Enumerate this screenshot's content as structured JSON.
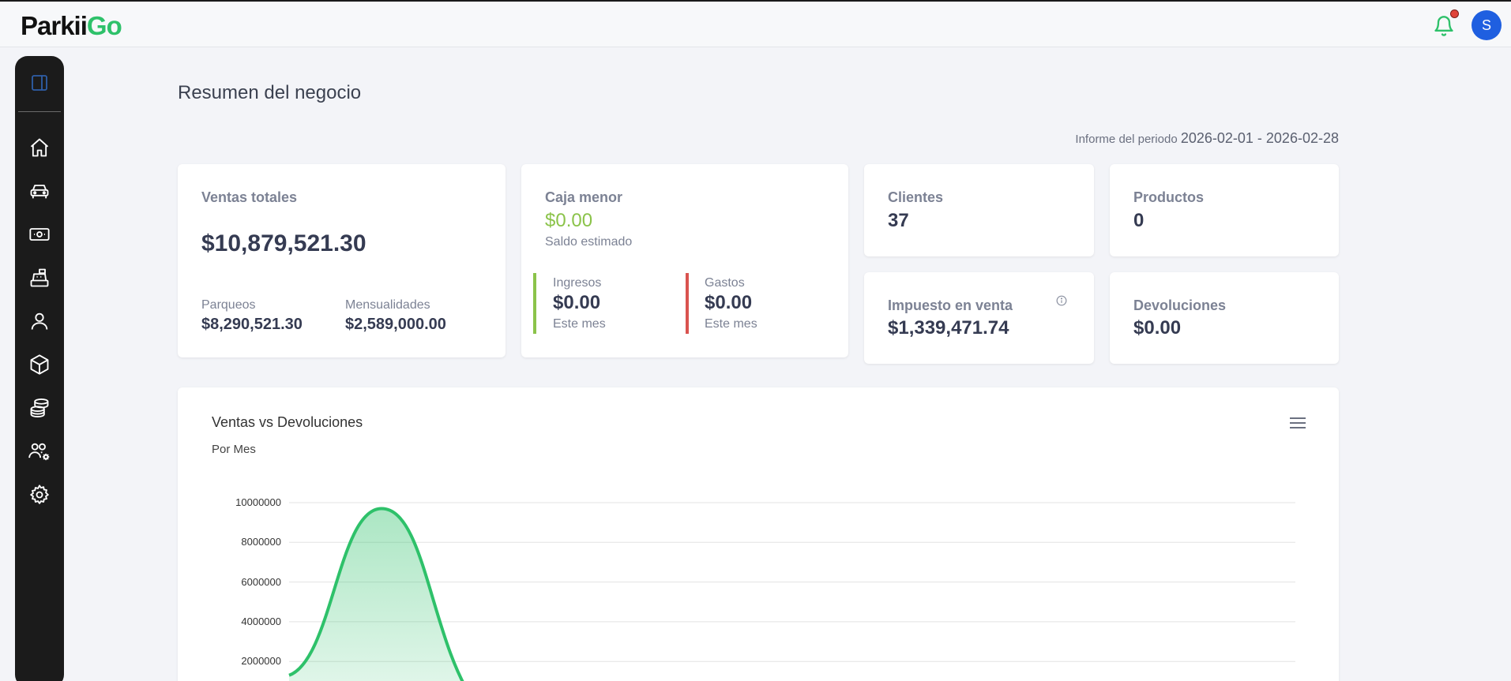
{
  "app": {
    "logo_prefix": "Parkii",
    "logo_suffix": "Go",
    "avatar_initial": "S",
    "notification_icon": "bell-icon"
  },
  "sidebar": {
    "toggle_icon": "sidebar-toggle-icon",
    "items": [
      {
        "name": "home",
        "icon": "home-icon"
      },
      {
        "name": "vehicles",
        "icon": "car-icon"
      },
      {
        "name": "payments",
        "icon": "cash-icon"
      },
      {
        "name": "cash-register",
        "icon": "register-icon"
      },
      {
        "name": "clients",
        "icon": "user-icon"
      },
      {
        "name": "products",
        "icon": "box-icon"
      },
      {
        "name": "finances",
        "icon": "coins-icon"
      },
      {
        "name": "users",
        "icon": "users-gear-icon"
      },
      {
        "name": "settings",
        "icon": "gear-icon"
      }
    ]
  },
  "page": {
    "title": "Resumen del negocio",
    "period_label": "Informe del periodo",
    "period_dates": "2026-02-01 - 2026-02-28"
  },
  "cards": {
    "ventas_totales": {
      "label": "Ventas totales",
      "value": "$10,879,521.30",
      "parqueos_label": "Parqueos",
      "parqueos_value": "$8,290,521.30",
      "mensualidades_label": "Mensualidades",
      "mensualidades_value": "$2,589,000.00"
    },
    "caja_menor": {
      "label": "Caja menor",
      "value": "$0.00",
      "caption": "Saldo estimado",
      "ingresos_label": "Ingresos",
      "ingresos_value": "$0.00",
      "ingresos_caption": "Este mes",
      "gastos_label": "Gastos",
      "gastos_value": "$0.00",
      "gastos_caption": "Este mes",
      "value_color": "#8bc34a",
      "ingresos_color": "#8bc34a",
      "gastos_color": "#d9534f"
    },
    "clientes": {
      "label": "Clientes",
      "value": "37"
    },
    "productos": {
      "label": "Productos",
      "value": "0"
    },
    "impuesto": {
      "label": "Impuesto en venta",
      "value": "$1,339,471.74",
      "info_icon": "info-icon"
    },
    "devoluciones": {
      "label": "Devoluciones",
      "value": "$0.00"
    }
  },
  "chart_data": {
    "type": "area",
    "title": "Ventas vs Devoluciones",
    "subtitle": "Por Mes",
    "yticks": [
      "10000000",
      "8000000",
      "6000000",
      "4000000",
      "2000000"
    ],
    "ylim": [
      0,
      10000000
    ],
    "series": [
      {
        "values": [
          1300000,
          9700000,
          0
        ],
        "color": "#2ec16a"
      }
    ],
    "grid": true,
    "menu_icon": "hamburger-menu-icon"
  }
}
